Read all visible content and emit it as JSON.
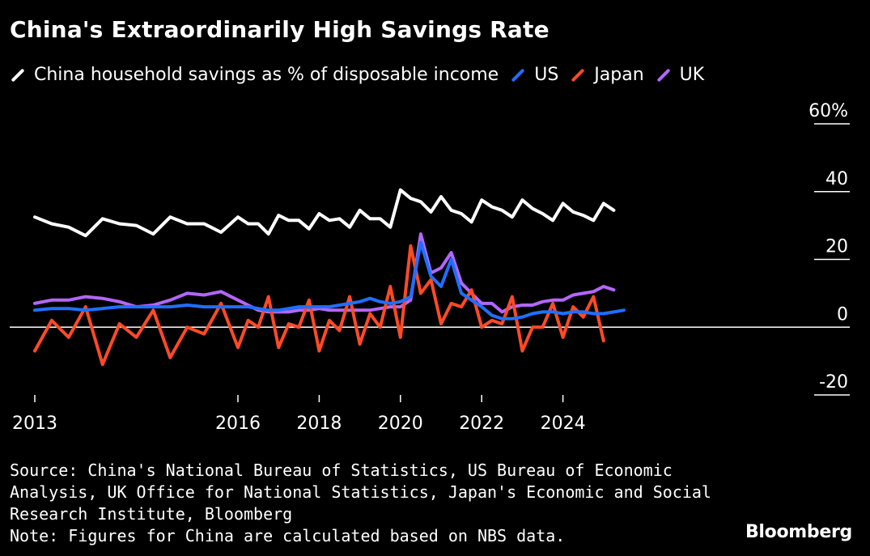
{
  "title": "China's Extraordinarily High Savings Rate",
  "legend": [
    {
      "label": "China household savings as % of disposable income",
      "color": "#ffffff"
    },
    {
      "label": "US",
      "color": "#1f6fff"
    },
    {
      "label": "Japan",
      "color": "#ff4a26"
    },
    {
      "label": "UK",
      "color": "#b466ff"
    }
  ],
  "source_lines": [
    "Source: China's National Bureau of Statistics, US Bureau of Economic",
    "Analysis, UK Office for National Statistics, Japan's Economic and Social",
    "Research Institute, Bloomberg",
    "Note: Figures for China are calculated based on NBS data."
  ],
  "brand": "Bloomberg",
  "chart_data": {
    "type": "line",
    "title": "China's Extraordinarily High Savings Rate",
    "xlabel": "",
    "ylabel": "",
    "ylim": [
      -20,
      60
    ],
    "y_ticks": [
      60,
      40,
      20,
      0,
      -20
    ],
    "y_tick_labels": [
      "60%",
      "40",
      "20",
      "0",
      "-20"
    ],
    "x_ticks": [
      2013,
      2016,
      2018,
      2020,
      2022,
      2024
    ],
    "x_tick_labels": [
      "2013",
      "2016",
      "2018",
      "2020",
      "2022",
      "2024"
    ],
    "xlim": [
      2013,
      2025.75
    ],
    "x_scale_anchors": [
      [
        2013,
        2016,
        2018,
        2020,
        2022,
        2024
      ],
      [
        0,
        5,
        7,
        9,
        11,
        13
      ]
    ],
    "grid": "horizontal",
    "series": [
      {
        "name": "China household savings as % of disposable income",
        "color": "#ffffff",
        "x": [
          2013.0,
          2013.25,
          2013.5,
          2013.75,
          2014.0,
          2014.25,
          2014.5,
          2014.75,
          2015.0,
          2015.25,
          2015.5,
          2015.75,
          2016.0,
          2016.25,
          2016.5,
          2016.75,
          2017.0,
          2017.25,
          2017.5,
          2017.75,
          2018.0,
          2018.25,
          2018.5,
          2018.75,
          2019.0,
          2019.25,
          2019.5,
          2019.75,
          2020.0,
          2020.25,
          2020.5,
          2020.75,
          2021.0,
          2021.25,
          2021.5,
          2021.75,
          2022.0,
          2022.25,
          2022.5,
          2022.75,
          2023.0,
          2023.25,
          2023.5,
          2023.75,
          2024.0,
          2024.25,
          2024.5,
          2024.75,
          2025.0,
          2025.25,
          2025.5
        ],
        "values": [
          32.5,
          30.5,
          29.5,
          27,
          32,
          30.5,
          30,
          27.5,
          32.5,
          30.5,
          30.5,
          28,
          32.5,
          30.5,
          30.5,
          27.5,
          33,
          31.5,
          31.5,
          29,
          33.5,
          31.5,
          32,
          29.5,
          34.5,
          32,
          32,
          29.5,
          40.5,
          38,
          37,
          34,
          38.5,
          34.5,
          33.5,
          31,
          37.5,
          35.5,
          34.5,
          32.5,
          37.5,
          35,
          33.5,
          31.5,
          36.5,
          34,
          33,
          31.5,
          36.5,
          34.5,
          null
        ]
      },
      {
        "name": "US",
        "color": "#1f6fff",
        "x": [
          2013.0,
          2013.25,
          2013.5,
          2013.75,
          2014.0,
          2014.25,
          2014.5,
          2014.75,
          2015.0,
          2015.25,
          2015.5,
          2015.75,
          2016.0,
          2016.25,
          2016.5,
          2016.75,
          2017.0,
          2017.25,
          2017.5,
          2017.75,
          2018.0,
          2018.25,
          2018.5,
          2018.75,
          2019.0,
          2019.25,
          2019.5,
          2019.75,
          2020.0,
          2020.25,
          2020.5,
          2020.75,
          2021.0,
          2021.25,
          2021.5,
          2021.75,
          2022.0,
          2022.25,
          2022.5,
          2022.75,
          2023.0,
          2023.25,
          2023.5,
          2023.75,
          2024.0,
          2024.25,
          2024.5,
          2024.75,
          2025.0,
          2025.25,
          2025.5
        ],
        "values": [
          5,
          5.5,
          5.5,
          5,
          5.5,
          6,
          6,
          6,
          6,
          6.5,
          6,
          6,
          6,
          6,
          5.5,
          5,
          5,
          5.5,
          6,
          6,
          6,
          6,
          6.5,
          7,
          7.5,
          8.5,
          7.5,
          7,
          7.5,
          9,
          25,
          15,
          12,
          20,
          10,
          8,
          6,
          3.5,
          2.5,
          2.5,
          3,
          4,
          4.5,
          4.5,
          4,
          4.5,
          4.5,
          4,
          4,
          4.5,
          5
        ]
      },
      {
        "name": "Japan",
        "color": "#ff4a26",
        "x": [
          2013.0,
          2013.25,
          2013.5,
          2013.75,
          2014.0,
          2014.25,
          2014.5,
          2014.75,
          2015.0,
          2015.25,
          2015.5,
          2015.75,
          2016.0,
          2016.25,
          2016.5,
          2016.75,
          2017.0,
          2017.25,
          2017.5,
          2017.75,
          2018.0,
          2018.25,
          2018.5,
          2018.75,
          2019.0,
          2019.25,
          2019.5,
          2019.75,
          2020.0,
          2020.25,
          2020.5,
          2020.75,
          2021.0,
          2021.25,
          2021.5,
          2021.75,
          2022.0,
          2022.25,
          2022.5,
          2022.75,
          2023.0,
          2023.25,
          2023.5,
          2023.75,
          2024.0,
          2024.25,
          2024.5,
          2024.75,
          2025.0,
          2025.25,
          2025.5
        ],
        "values": [
          -7,
          2,
          -3,
          6,
          -11,
          1,
          -3,
          5,
          -9,
          0,
          -2,
          7,
          -6,
          2,
          0,
          9,
          -6,
          1,
          0,
          8,
          -7,
          2,
          -1,
          9,
          -5,
          4,
          0,
          12,
          -3,
          24,
          10,
          14,
          1,
          7,
          6,
          11,
          0,
          2,
          1,
          9,
          -7,
          0,
          0,
          7,
          -3,
          6,
          3,
          9,
          -4,
          null,
          null
        ]
      },
      {
        "name": "UK",
        "color": "#b466ff",
        "x": [
          2013.0,
          2013.25,
          2013.5,
          2013.75,
          2014.0,
          2014.25,
          2014.5,
          2014.75,
          2015.0,
          2015.25,
          2015.5,
          2015.75,
          2016.0,
          2016.25,
          2016.5,
          2016.75,
          2017.0,
          2017.25,
          2017.5,
          2017.75,
          2018.0,
          2018.25,
          2018.5,
          2018.75,
          2019.0,
          2019.25,
          2019.5,
          2019.75,
          2020.0,
          2020.25,
          2020.5,
          2020.75,
          2021.0,
          2021.25,
          2021.5,
          2021.75,
          2022.0,
          2022.25,
          2022.5,
          2022.75,
          2023.0,
          2023.25,
          2023.5,
          2023.75,
          2024.0,
          2024.25,
          2024.5,
          2024.75,
          2025.0,
          2025.25,
          2025.5
        ],
        "values": [
          7,
          8,
          8,
          9,
          8.5,
          7.5,
          6,
          6.5,
          8,
          10,
          9.5,
          10.5,
          8,
          6.5,
          5,
          4.5,
          4.5,
          4.5,
          5,
          5,
          5.5,
          5,
          5,
          5,
          5,
          5,
          5.5,
          6,
          6,
          8,
          27.5,
          16,
          17.5,
          22,
          13,
          10,
          7,
          7,
          4.5,
          6,
          6.5,
          6.5,
          7.5,
          8,
          8,
          9.5,
          10,
          10.5,
          12,
          11,
          null
        ]
      }
    ]
  }
}
